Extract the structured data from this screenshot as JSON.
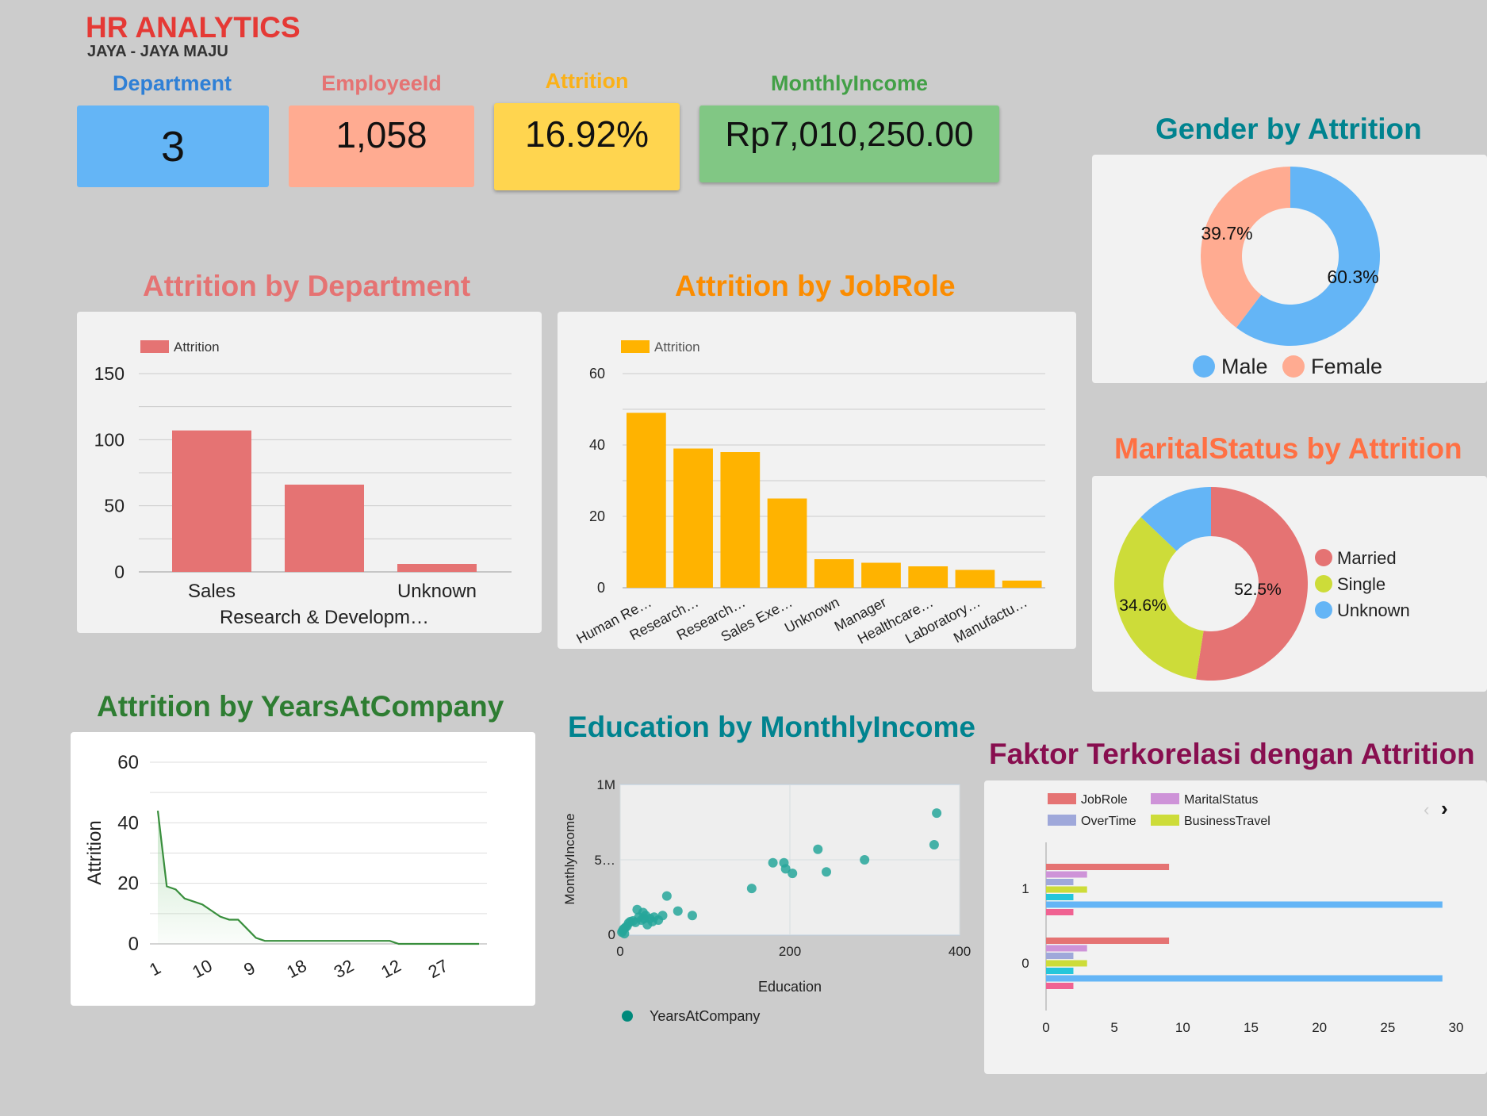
{
  "header": {
    "title": "HR ANALYTICS",
    "subtitle": "JAYA - JAYA MAJU"
  },
  "kpis": [
    {
      "label": "Department",
      "value": "3",
      "label_color": "#2f80d6",
      "box_color": "#64b5f6"
    },
    {
      "label": "EmployeeId",
      "value": "1,058",
      "label_color": "#e57373",
      "box_color": "#ffab91"
    },
    {
      "label": "Attrition",
      "value": "16.92%",
      "label_color": "#fbb117",
      "box_color": "#ffd54f"
    },
    {
      "label": "MonthlyIncome",
      "value": "Rp7,010,250.00",
      "label_color": "#43a047",
      "box_color": "#81c784"
    }
  ],
  "chart_titles": {
    "dept": "Attrition by Department",
    "jobrole": "Attrition by JobRole",
    "gender": "Gender by Attrition",
    "marital": "MaritalStatus by Attrition",
    "years": "Attrition by YearsAtCompany",
    "education": "Education by MonthlyIncome",
    "faktor": "Faktor Terkorelasi dengan Attrition"
  },
  "chart_data": [
    {
      "id": "dept",
      "type": "bar",
      "title": "Attrition by Department",
      "categories": [
        "Sales",
        "Research & Developm…",
        "Unknown"
      ],
      "series": [
        {
          "name": "Attrition",
          "values": [
            107,
            66,
            6
          ],
          "color": "#e57373"
        }
      ],
      "ylim": [
        0,
        150
      ],
      "yticks": [
        0,
        50,
        100,
        150
      ],
      "legend": "top-left"
    },
    {
      "id": "jobrole",
      "type": "bar",
      "title": "Attrition by JobRole",
      "categories": [
        "Human Re…",
        "Research…",
        "Research…",
        "Sales Exe…",
        "Unknown",
        "Manager",
        "Healthcare…",
        "Laboratory…",
        "Manufactu…"
      ],
      "series": [
        {
          "name": "Attrition",
          "values": [
            49,
            39,
            38,
            25,
            8,
            7,
            6,
            5,
            2
          ],
          "color": "#ffb300"
        }
      ],
      "ylim": [
        0,
        60
      ],
      "yticks": [
        0,
        20,
        40,
        60
      ],
      "legend": "top-left"
    },
    {
      "id": "gender",
      "type": "pie",
      "title": "Gender by Attrition",
      "labels": [
        "Male",
        "Female"
      ],
      "values": [
        60.3,
        39.7
      ],
      "value_labels": [
        "60.3%",
        "39.7%"
      ],
      "colors": [
        "#64b5f6",
        "#ffab91"
      ],
      "legend": "bottom"
    },
    {
      "id": "marital",
      "type": "pie",
      "title": "MaritalStatus by Attrition",
      "labels": [
        "Married",
        "Single",
        "Unknown"
      ],
      "values": [
        52.5,
        34.6,
        12.9
      ],
      "value_labels": [
        "52.5%",
        "34.6%",
        ""
      ],
      "colors": [
        "#e57373",
        "#cddc39",
        "#64b5f6"
      ],
      "legend": "right"
    },
    {
      "id": "years",
      "type": "area",
      "title": "Attrition by YearsAtCompany",
      "ylabel": "Attrition",
      "x_tick_labels": [
        "1",
        "10",
        "9",
        "18",
        "32",
        "12",
        "27"
      ],
      "values": [
        44,
        19,
        18,
        15,
        14,
        13,
        11,
        9,
        8,
        8,
        5,
        2,
        1,
        1,
        1,
        1,
        1,
        1,
        1,
        1,
        1,
        1,
        1,
        1,
        1,
        1,
        1,
        0,
        0,
        0,
        0,
        0,
        0,
        0,
        0,
        0,
        0
      ],
      "ylim": [
        0,
        60
      ],
      "yticks": [
        0,
        20,
        40,
        60
      ],
      "color": "#388e3c"
    },
    {
      "id": "education",
      "type": "scatter",
      "title": "Education by MonthlyIncome",
      "xlabel": "Education",
      "ylabel": "MonthlyIncome",
      "x_tick_labels": [
        "0",
        "200",
        "400"
      ],
      "y_tick_labels": [
        "0",
        "5…",
        "1M"
      ],
      "xlim": [
        0,
        400
      ],
      "ylim": [
        0,
        1000000
      ],
      "series_name": "YearsAtCompany",
      "color": "#26a69a",
      "points": [
        [
          2,
          20000
        ],
        [
          4,
          40000
        ],
        [
          6,
          50000
        ],
        [
          8,
          60000
        ],
        [
          10,
          80000
        ],
        [
          12,
          90000
        ],
        [
          15,
          95000
        ],
        [
          18,
          85000
        ],
        [
          22,
          120000
        ],
        [
          25,
          100000
        ],
        [
          27,
          150000
        ],
        [
          30,
          130000
        ],
        [
          32,
          70000
        ],
        [
          35,
          110000
        ],
        [
          38,
          90000
        ],
        [
          40,
          120000
        ],
        [
          45,
          100000
        ],
        [
          50,
          130000
        ],
        [
          55,
          260000
        ],
        [
          68,
          160000
        ],
        [
          85,
          130000
        ],
        [
          155,
          310000
        ],
        [
          180,
          480000
        ],
        [
          193,
          480000
        ],
        [
          195,
          440000
        ],
        [
          203,
          410000
        ],
        [
          233,
          570000
        ],
        [
          243,
          420000
        ],
        [
          288,
          500000
        ],
        [
          370,
          600000
        ],
        [
          373,
          810000
        ],
        [
          3,
          30000
        ],
        [
          5,
          10000
        ],
        [
          20,
          170000
        ],
        [
          28,
          110000
        ]
      ]
    },
    {
      "id": "faktor",
      "type": "bar",
      "orientation": "horizontal",
      "title": "Faktor Terkorelasi dengan Attrition",
      "categories": [
        "1",
        "0"
      ],
      "legend_items": [
        {
          "name": "JobRole",
          "color": "#e57373"
        },
        {
          "name": "MaritalStatus",
          "color": "#ce93d8"
        },
        {
          "name": "OverTime",
          "color": "#9fa8da"
        },
        {
          "name": "BusinessTravel",
          "color": "#cddc39"
        }
      ],
      "series": [
        {
          "name": "JobRole",
          "values": [
            9,
            9
          ],
          "color": "#e57373"
        },
        {
          "name": "MaritalStatus",
          "values": [
            3,
            3
          ],
          "color": "#ce93d8"
        },
        {
          "name": "OverTime",
          "values": [
            2,
            2
          ],
          "color": "#9fa8da"
        },
        {
          "name": "BusinessTravel",
          "values": [
            3,
            3
          ],
          "color": "#cddc39"
        },
        {
          "name": "",
          "values": [
            2,
            2
          ],
          "color": "#26c6da"
        },
        {
          "name": "",
          "values": [
            29,
            29
          ],
          "color": "#64b5f6"
        },
        {
          "name": "",
          "values": [
            2,
            2
          ],
          "color": "#f06292"
        }
      ],
      "xlim": [
        0,
        30
      ],
      "xticks": [
        0,
        5,
        10,
        15,
        20,
        25,
        30
      ],
      "legend": "top"
    }
  ]
}
